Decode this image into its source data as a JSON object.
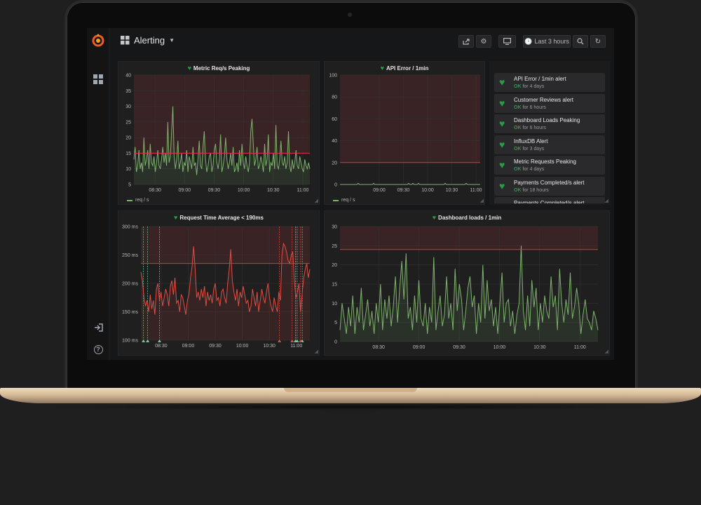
{
  "navbar": {
    "dashboard_title": "Alerting",
    "time_range_label": "Last 3 hours",
    "share_icon": "share-icon",
    "settings_icon": "gear-icon",
    "cycle_view_icon": "monitor-icon",
    "zoom_icon": "search-icon",
    "refresh_icon": "refresh-icon"
  },
  "sidemenu": {
    "logo_icon": "grafana-logo-icon",
    "dashboards_icon": "grid-icon",
    "signin_icon": "sign-in-icon",
    "help_icon": "help-icon",
    "help_glyph": "?"
  },
  "colors": {
    "green_series": "#7eb26d",
    "red_series": "#e24d42",
    "threshold_line": "#e02f44",
    "ok_green": "#299c46",
    "alert_zone": "#3a2324"
  },
  "chart_data": [
    {
      "type": "line",
      "title": "Metric Req/s Peaking",
      "y_ticks": [
        "40",
        "35",
        "30",
        "25",
        "20",
        "15",
        "10",
        "5"
      ],
      "ylim": [
        5,
        40
      ],
      "x_ticks": [
        "08:30",
        "09:00",
        "09:30",
        "10:00",
        "10:30",
        "11:00"
      ],
      "threshold": 15,
      "legend": [
        {
          "name": "req / s"
        }
      ],
      "series": [
        {
          "name": "req / s",
          "values": [
            13,
            17,
            9,
            11,
            16,
            10,
            12,
            9,
            20,
            11,
            13,
            16,
            10,
            18,
            12,
            11,
            14,
            9,
            12,
            16,
            11,
            10,
            13,
            17,
            12,
            15,
            11,
            25,
            12,
            14,
            22,
            30,
            14,
            10,
            13,
            19,
            10,
            12,
            15,
            9,
            12,
            11,
            16,
            9,
            14,
            12,
            10,
            17,
            11,
            12,
            8,
            13,
            19,
            11,
            10,
            17,
            22,
            13,
            9,
            11,
            14,
            15,
            9,
            11,
            16,
            18,
            12,
            10,
            13,
            21,
            9,
            11,
            14,
            20,
            13,
            10,
            12,
            15,
            11,
            17,
            9,
            10,
            12,
            9,
            16,
            11,
            18,
            12,
            10,
            14,
            11,
            9,
            12,
            22,
            26,
            18,
            11,
            13,
            17,
            10,
            11,
            14,
            12,
            9,
            18,
            11,
            13,
            21,
            9,
            12,
            11,
            15,
            10,
            24,
            11,
            10,
            13,
            19,
            12,
            11,
            14,
            10,
            12,
            22,
            11,
            9,
            13,
            10,
            12,
            16,
            11,
            10,
            14,
            12,
            10,
            9,
            13,
            11,
            10,
            12,
            10
          ]
        }
      ]
    },
    {
      "type": "line",
      "title": "API Error / 1min",
      "y_ticks": [
        "100",
        "80",
        "60",
        "40",
        "20",
        "0"
      ],
      "ylim": [
        0,
        100
      ],
      "x_ticks": [
        "09:00",
        "09:30",
        "10:00",
        "10:30",
        "11:00"
      ],
      "threshold": 20,
      "legend": [
        {
          "name": "req / s"
        }
      ],
      "series": [
        {
          "name": "req / s",
          "values": [
            0,
            0,
            0,
            0,
            0,
            0,
            0,
            0,
            0,
            0,
            0,
            0,
            0,
            1,
            0,
            0,
            0,
            0,
            0,
            0,
            0,
            0,
            0,
            0,
            1,
            0,
            0,
            0,
            0,
            0,
            0,
            0,
            0,
            0,
            0,
            0,
            0,
            0,
            0,
            0,
            0,
            0,
            0,
            0,
            0,
            0,
            0,
            0,
            0,
            1,
            0,
            0,
            1,
            0,
            0,
            0,
            1,
            0,
            0,
            0,
            0,
            0,
            0,
            0,
            0,
            0,
            0,
            0,
            0,
            0,
            0,
            0,
            0,
            0,
            0,
            1,
            0,
            0,
            0,
            0,
            0,
            0,
            0,
            0,
            0,
            0,
            0,
            0,
            0,
            0,
            1,
            0,
            0,
            0,
            0,
            0,
            0,
            0,
            0,
            0,
            0
          ]
        }
      ]
    },
    {
      "type": "line",
      "title": "Request Time Average < 190ms",
      "y_ticks": [
        "300 ms",
        "250 ms",
        "200 ms",
        "150 ms",
        "100 ms"
      ],
      "ylim": [
        100,
        300
      ],
      "x_ticks": [
        "08:30",
        "09:00",
        "09:30",
        "10:00",
        "10:30",
        "11:00"
      ],
      "threshold": 235,
      "series": [
        {
          "name": "",
          "values": [
            220,
            205,
            175,
            160,
            170,
            150,
            180,
            155,
            170,
            145,
            190,
            200,
            170,
            185,
            160,
            175,
            190,
            180,
            160,
            195,
            205,
            180,
            210,
            165,
            170,
            150,
            180,
            175,
            160,
            145,
            170,
            180,
            210,
            230,
            265,
            225,
            175,
            185,
            170,
            190,
            175,
            195,
            160,
            185,
            170,
            180,
            165,
            190,
            200,
            170,
            175,
            160,
            185,
            190,
            175,
            165,
            200,
            225,
            260,
            205,
            185,
            170,
            190,
            160,
            185,
            175,
            195,
            180,
            165,
            170,
            150,
            160,
            190,
            175,
            160,
            185,
            150,
            170,
            190,
            175,
            165,
            185,
            200,
            175,
            160,
            150,
            175,
            160,
            150,
            185,
            170,
            250,
            270,
            265,
            255,
            240,
            235,
            250,
            255,
            205,
            175,
            185,
            200,
            150,
            180,
            210,
            225,
            235,
            210,
            225
          ]
        }
      ],
      "annotations": {
        "green": [
          0.015,
          0.04,
          0.11,
          0.915,
          0.925,
          0.955
        ],
        "red": [
          0.82,
          0.895,
          0.945
        ]
      }
    },
    {
      "type": "line",
      "title": "Dashboard loads / 1min",
      "y_ticks": [
        "30",
        "25",
        "20",
        "15",
        "10",
        "5",
        "0"
      ],
      "ylim": [
        0,
        30
      ],
      "x_ticks": [
        "08:30",
        "09:00",
        "09:30",
        "10:00",
        "10:30",
        "11:00"
      ],
      "threshold": 24,
      "series": [
        {
          "name": "",
          "values": [
            3,
            10,
            6,
            2,
            9,
            4,
            12,
            2,
            9,
            5,
            14,
            3,
            7,
            11,
            4,
            8,
            2,
            10,
            5,
            15,
            3,
            11,
            6,
            12,
            4,
            9,
            17,
            5,
            14,
            21,
            11,
            23,
            6,
            9,
            3,
            12,
            5,
            16,
            6,
            4,
            10,
            2,
            9,
            5,
            22,
            3,
            8,
            12,
            4,
            7,
            17,
            6,
            10,
            3,
            19,
            8,
            15,
            11,
            3,
            8,
            14,
            17,
            9,
            12,
            2,
            10,
            5,
            20,
            6,
            16,
            8,
            11,
            4,
            9,
            2,
            10,
            18,
            5,
            10,
            11,
            4,
            8,
            2,
            7,
            10,
            25,
            8,
            3,
            12,
            4,
            16,
            9,
            14,
            3,
            10,
            5,
            12,
            8,
            6,
            17,
            9,
            12,
            3,
            19,
            10,
            5,
            11,
            7,
            18,
            6,
            9,
            14,
            10,
            2,
            7,
            11,
            6,
            5,
            3,
            8,
            6,
            3
          ]
        }
      ]
    }
  ],
  "alert_list": [
    {
      "name": "API Error / 1min alert",
      "state": "OK",
      "since": "for 4 days"
    },
    {
      "name": "Customer Reviews alert",
      "state": "OK",
      "since": "for 6 hours"
    },
    {
      "name": "Dashboard Loads Peaking",
      "state": "OK",
      "since": "for 6 hours"
    },
    {
      "name": "InfluxDB Alert",
      "state": "OK",
      "since": "for 3 days"
    },
    {
      "name": "Metric Requests Peaking",
      "state": "OK",
      "since": "for 4 days"
    },
    {
      "name": "Payments Completed/s alert",
      "state": "OK",
      "since": "for 18 hours"
    },
    {
      "name": "Payments Completed/s alert",
      "state": "",
      "since": ""
    }
  ]
}
